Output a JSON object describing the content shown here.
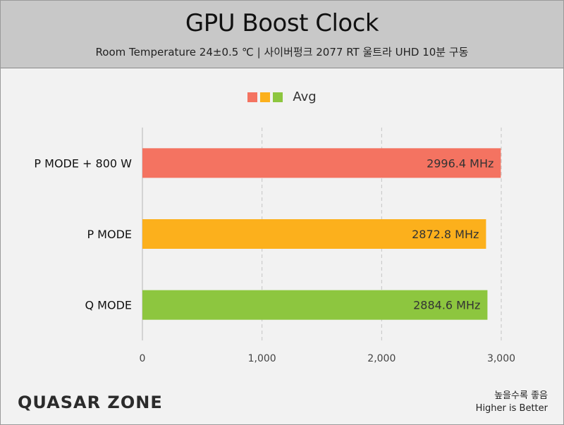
{
  "header": {
    "title": "GPU Boost Clock",
    "subtitle": "Room Temperature 24±0.5 ℃  |  사이버펑크 2077 RT 울트라 UHD 10분 구동"
  },
  "legend": {
    "label": "Avg",
    "swatches": [
      "#f47361",
      "#fcb01c",
      "#8dc63f"
    ]
  },
  "chart_data": {
    "type": "bar",
    "orientation": "horizontal",
    "categories": [
      "P MODE + 800 W",
      "P MODE",
      "Q MODE"
    ],
    "series": [
      {
        "name": "Avg",
        "values": [
          2996.4,
          2872.8,
          2884.6
        ]
      }
    ],
    "data_labels": [
      "2996.4 MHz",
      "2872.8 MHz",
      "2884.6 MHz"
    ],
    "bar_colors": [
      "#f47361",
      "#fcb01c",
      "#8dc63f"
    ],
    "xlim": [
      0,
      3000
    ],
    "x_ticks": [
      0,
      1000,
      2000,
      3000
    ],
    "x_tick_labels": [
      "0",
      "1,000",
      "2,000",
      "3,000"
    ],
    "grid": true,
    "legend_position": "top-center"
  },
  "footer": {
    "brand": "QUASAR ZONE",
    "note_line1": "높을수록 좋음",
    "note_line2": "Higher is Better"
  }
}
